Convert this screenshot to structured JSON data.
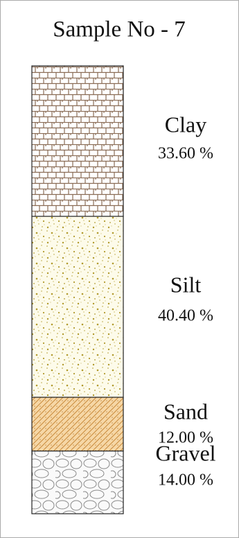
{
  "chart_data": {
    "type": "stacked-column",
    "title": "Sample No - 7",
    "categories": [
      "Clay",
      "Silt",
      "Sand",
      "Gravel"
    ],
    "values": [
      33.6,
      40.4,
      12,
      14
    ],
    "value_labels": [
      "33.60 %",
      "40.40 %",
      "12.00 %",
      "14.00 %"
    ]
  }
}
